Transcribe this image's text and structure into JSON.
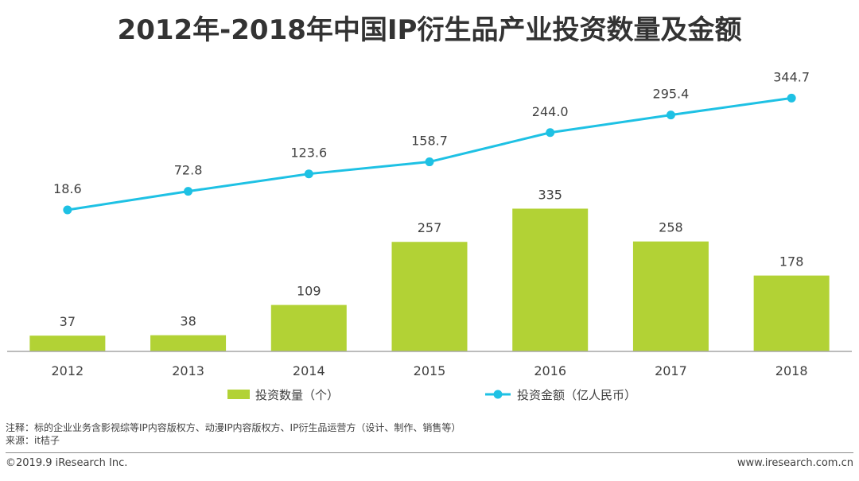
{
  "title": "2012年-2018年中国IP衍生品产业投资数量及金额",
  "chart_data": {
    "type": "bar+line",
    "categories": [
      "2012",
      "2013",
      "2014",
      "2015",
      "2016",
      "2017",
      "2018"
    ],
    "series": [
      {
        "name": "投资数量（个）",
        "kind": "bar",
        "color": "#b2d235",
        "values": [
          37,
          38,
          109,
          257,
          335,
          258,
          178
        ],
        "labels": [
          "37",
          "38",
          "109",
          "257",
          "335",
          "258",
          "178"
        ]
      },
      {
        "name": "投资金额（亿人民币）",
        "kind": "line",
        "color": "#1ec1e4",
        "values": [
          18.6,
          72.8,
          123.6,
          158.7,
          244.0,
          295.4,
          344.7
        ],
        "labels": [
          "18.6",
          "72.8",
          "123.6",
          "158.7",
          "244.0",
          "295.4",
          "344.7"
        ]
      }
    ],
    "legend_position": "bottom",
    "grid": false
  },
  "notes": {
    "note": "注释：标的企业业务含影视综等IP内容版权方、动漫IP内容版权方、IP衍生品运营方（设计、制作、销售等）",
    "source": "来源：it桔子"
  },
  "footer": {
    "copyright": "©2019.9 iResearch Inc.",
    "website": "www.iresearch.com.cn"
  }
}
